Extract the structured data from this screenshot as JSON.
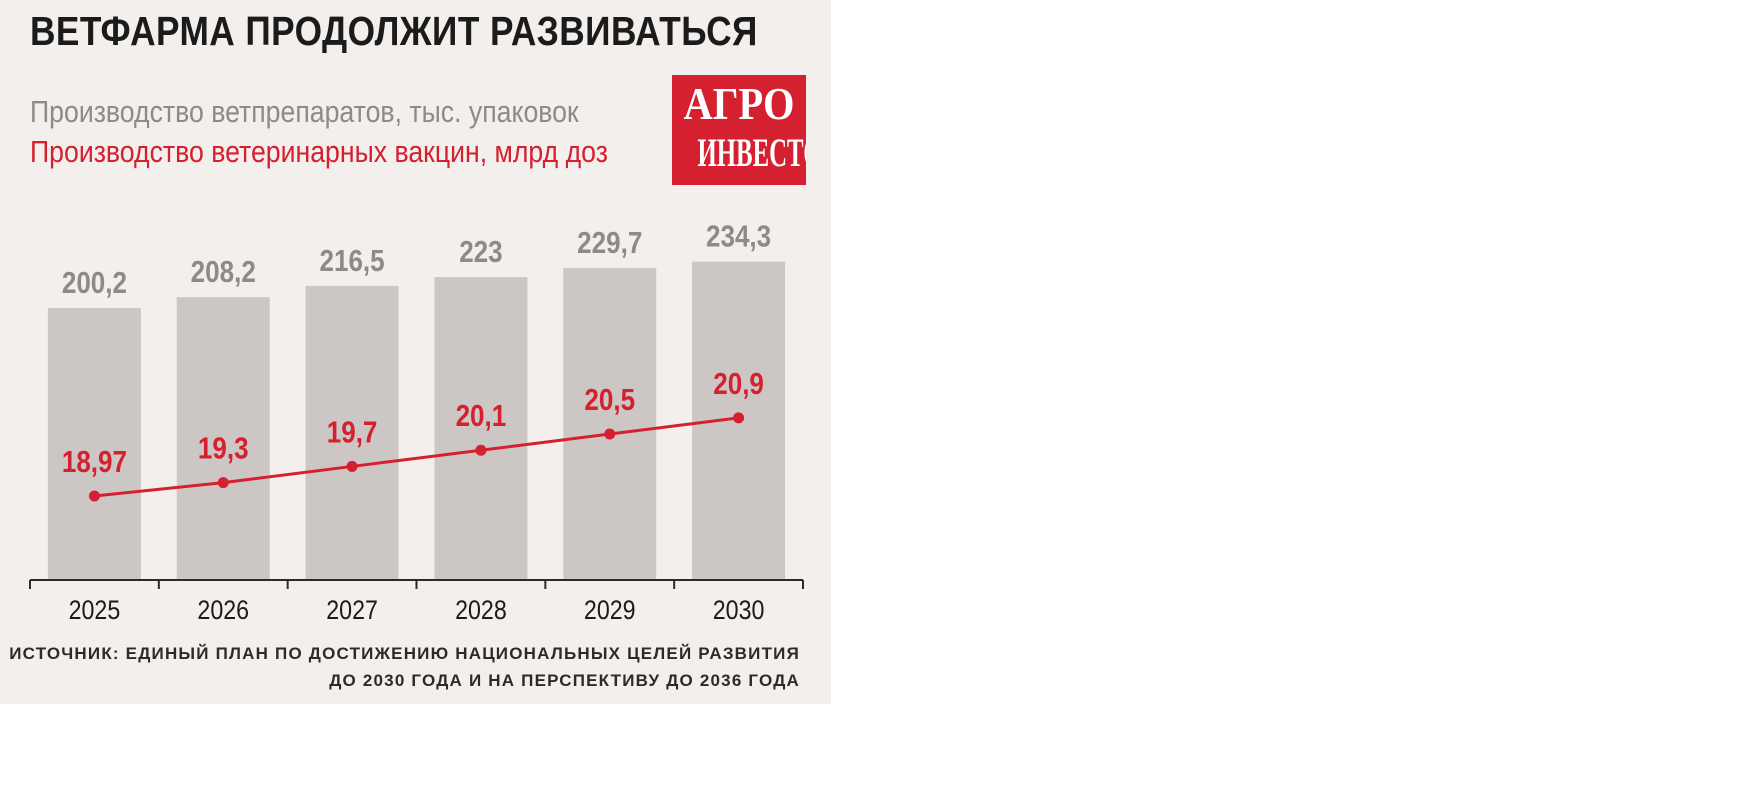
{
  "title": "ВЕТФАРМА ПРОДОЛЖИТ РАЗВИВАТЬСЯ",
  "logo": {
    "line1": "АГРО",
    "line2": "ИНВЕСТОР"
  },
  "source": {
    "line1": "ИСТОЧНИК: ЕДИНЫЙ ПЛАН ПО ДОСТИЖЕНИЮ НАЦИОНАЛЬНЫХ ЦЕЛЕЙ РАЗВИТИЯ",
    "line2": "ДО 2030 ГОДА И НА ПЕРСПЕКТИВУ ДО 2036 ГОДА"
  },
  "colors": {
    "bar": "#ccc7c4",
    "bar_label": "#8f8a86",
    "line": "#d4202f",
    "background": "#f2efec"
  },
  "chart_data": {
    "type": "bar",
    "categories": [
      "2025",
      "2026",
      "2027",
      "2028",
      "2029",
      "2030"
    ],
    "series": [
      {
        "name": "Производство ветпрепаратов, тыс. упаковок",
        "type": "bar",
        "values": [
          200.2,
          208.2,
          216.5,
          223,
          229.7,
          234.3
        ],
        "labels": [
          "200,2",
          "208,2",
          "216,5",
          "223",
          "229,7",
          "234,3"
        ]
      },
      {
        "name": "Производство ветеринарных вакцин, млрд доз",
        "type": "line",
        "values": [
          18.97,
          19.3,
          19.7,
          20.1,
          20.5,
          20.9
        ],
        "labels": [
          "18,97",
          "19,3",
          "19,7",
          "20,1",
          "20,5",
          "20,9"
        ]
      }
    ],
    "grid": false
  }
}
